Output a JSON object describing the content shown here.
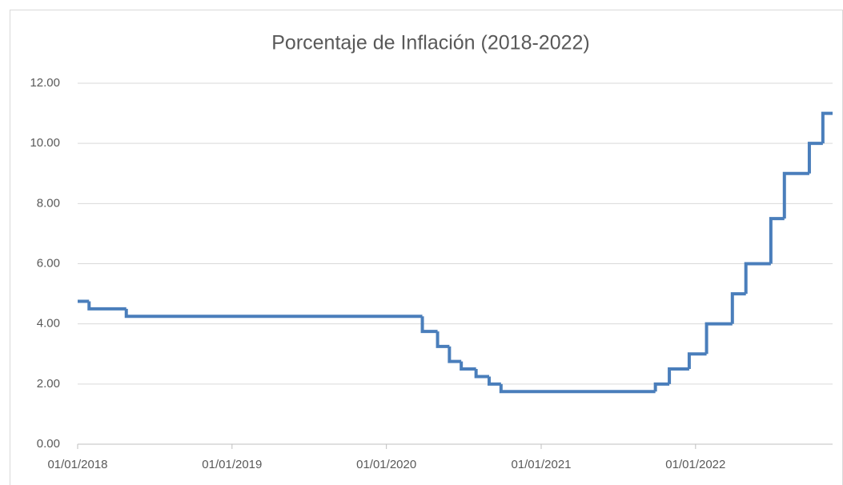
{
  "chart_data": {
    "type": "line",
    "step": "post",
    "title": "Porcentaje de Inflación (2018-2022)",
    "color": "#4a7ebb",
    "grid": true,
    "x": [
      "2018-01-01",
      "2018-01-28",
      "2018-04-26",
      "2020-03-26",
      "2020-05-01",
      "2020-05-29",
      "2020-06-26",
      "2020-07-31",
      "2020-08-31",
      "2020-09-28",
      "2021-09-28",
      "2021-10-31",
      "2021-12-17",
      "2022-01-27",
      "2022-03-29",
      "2022-04-30",
      "2022-06-28",
      "2022-07-30",
      "2022-09-27",
      "2022-10-29"
    ],
    "values": [
      4.75,
      4.5,
      4.25,
      3.75,
      3.25,
      2.75,
      2.5,
      2.25,
      2.0,
      1.75,
      2.0,
      2.5,
      3.0,
      4.0,
      5.0,
      6.0,
      7.5,
      9.0,
      10.0,
      11.0
    ],
    "xlim": [
      "2018-01-01",
      "2022-11-21"
    ],
    "xticks": [
      {
        "value": "2018-01-01",
        "label": "01/01/2018"
      },
      {
        "value": "2019-01-01",
        "label": "01/01/2019"
      },
      {
        "value": "2020-01-01",
        "label": "01/01/2020"
      },
      {
        "value": "2021-01-01",
        "label": "01/01/2021"
      },
      {
        "value": "2022-01-01",
        "label": "01/01/2022"
      }
    ],
    "ylim": [
      0,
      12
    ],
    "yticks": [
      {
        "value": 0,
        "label": "0.00"
      },
      {
        "value": 2,
        "label": "2.00"
      },
      {
        "value": 4,
        "label": "4.00"
      },
      {
        "value": 6,
        "label": "6.00"
      },
      {
        "value": 8,
        "label": "8.00"
      },
      {
        "value": 10,
        "label": "10.00"
      },
      {
        "value": 12,
        "label": "12.00"
      }
    ]
  }
}
